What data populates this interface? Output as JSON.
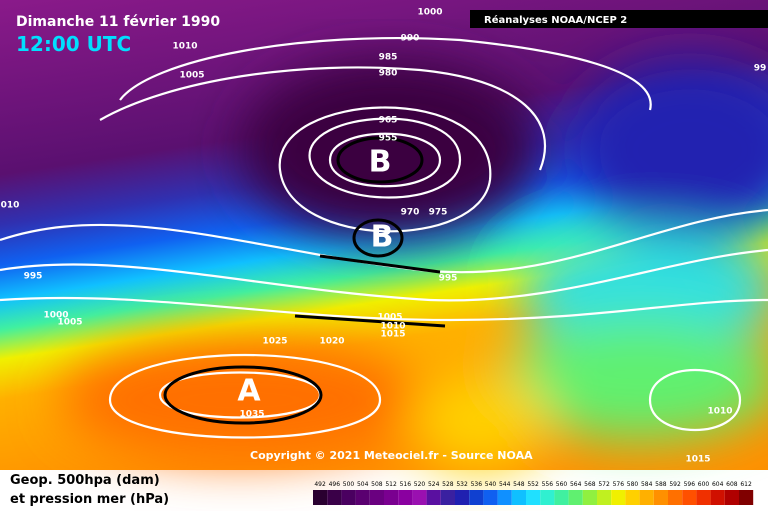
{
  "header": {
    "date": "Dimanche 11 février 1990",
    "time": "12:00 UTC",
    "source": "Réanalyses NOAA/NCEP 2"
  },
  "footer": {
    "copyright": "Copyright © 2021 Meteociel.fr - Source NOAA",
    "caption_line1": "Geop. 500hpa (dam)",
    "caption_line2": "et pression mer (hPa)"
  },
  "centers": [
    "B",
    "B",
    "A"
  ],
  "isobar_labels": [
    "1000",
    "990",
    "985",
    "980",
    "1010",
    "1005",
    "965",
    "955",
    "970",
    "975",
    "995",
    "010",
    "995",
    "1000",
    "1005",
    "1025",
    "1020",
    "1005",
    "1010",
    "1015",
    "1035",
    "1010",
    "1015",
    "99"
  ],
  "scale": {
    "values": [
      492,
      496,
      500,
      504,
      508,
      512,
      516,
      520,
      524,
      528,
      532,
      536,
      540,
      544,
      548,
      552,
      556,
      560,
      564,
      568,
      572,
      576,
      580,
      584,
      588,
      592,
      596,
      600,
      604,
      608,
      612
    ],
    "colors": [
      "#2a0030",
      "#3a0048",
      "#4a0060",
      "#5a0070",
      "#6a0080",
      "#7a0090",
      "#8a00a0",
      "#9a10b0",
      "#5a10a0",
      "#3a20a0",
      "#2020b0",
      "#1040d0",
      "#1060f0",
      "#1090ff",
      "#10c0ff",
      "#20e0ff",
      "#30f0d0",
      "#40f0a0",
      "#60f070",
      "#90f040",
      "#c0f020",
      "#f0f000",
      "#ffd000",
      "#ffb000",
      "#ff9000",
      "#ff7000",
      "#ff5000",
      "#f03000",
      "#d01000",
      "#b00000",
      "#800000"
    ]
  }
}
